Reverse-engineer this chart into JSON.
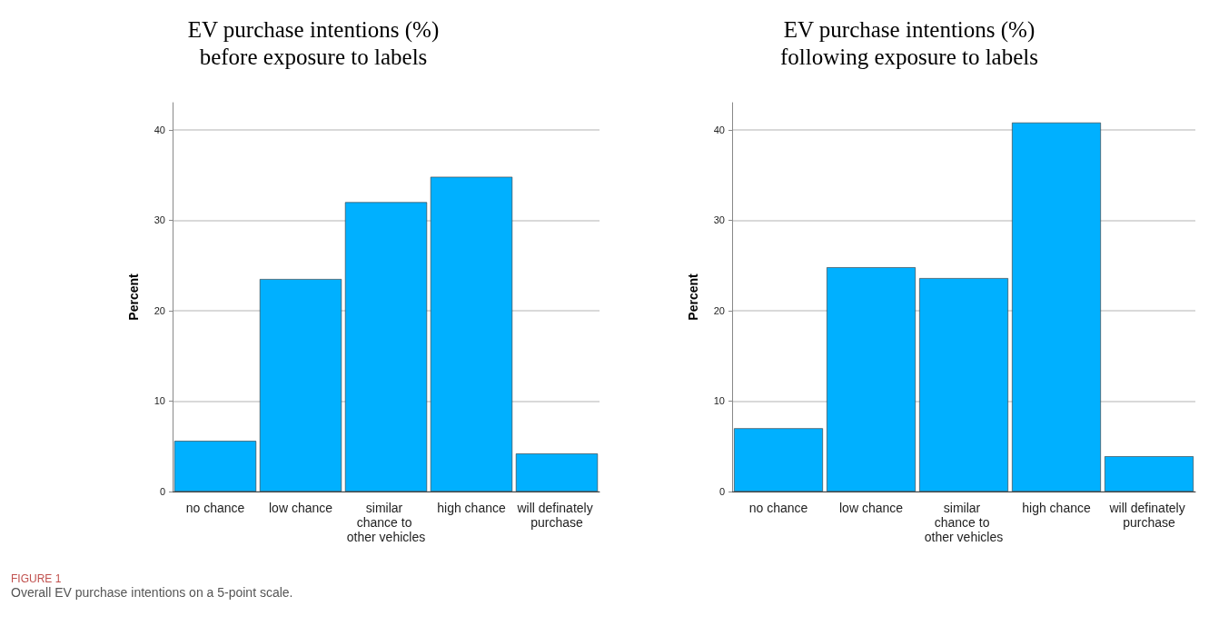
{
  "chart_data": [
    {
      "type": "bar",
      "title": "EV purchase intentions (%)\nbefore exposure to labels",
      "ylabel": "Percent",
      "categories": [
        "no chance",
        "low chance",
        "similar chance to other vehicles",
        "high chance",
        "will definately purchase"
      ],
      "values": [
        5.6,
        23.5,
        32.0,
        34.8,
        4.2
      ],
      "color": "#00b0ff",
      "ylim": [
        0,
        43
      ],
      "yticks": [
        0,
        10,
        20,
        30,
        40
      ],
      "grid": "y",
      "annotations": [
        "FIGURE 1",
        "Overall EV purchase intentions on a 5-point scale."
      ]
    },
    {
      "type": "bar",
      "title": "EV purchase intentions (%)\nfollowing exposure to labels",
      "ylabel": "Percent",
      "categories": [
        "no chance",
        "low chance",
        "similar chance to other vehicles",
        "high chance",
        "will definately purchase"
      ],
      "values": [
        7.0,
        24.8,
        23.6,
        40.8,
        3.9
      ],
      "color": "#00b0ff",
      "ylim": [
        0,
        43
      ],
      "yticks": [
        0,
        10,
        20,
        30,
        40
      ],
      "grid": "y"
    }
  ]
}
